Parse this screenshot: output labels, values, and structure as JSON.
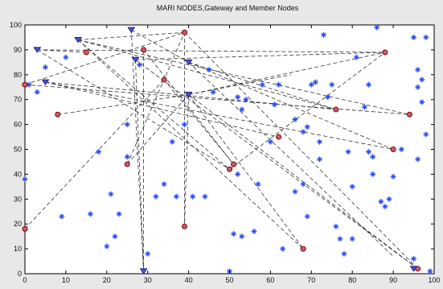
{
  "chart_data": {
    "type": "scatter",
    "title": "MARI NODES,Gateway and Member Nodes",
    "xlabel": "",
    "ylabel": "",
    "xlim": [
      0,
      100
    ],
    "ylim": [
      0,
      100
    ],
    "x_ticks": [
      0,
      10,
      20,
      30,
      40,
      50,
      60,
      70,
      80,
      90,
      100
    ],
    "y_ticks": [
      0,
      10,
      20,
      30,
      40,
      50,
      60,
      70,
      80,
      90,
      100
    ],
    "grid": false,
    "colors": {
      "member": "#2a4cf0",
      "mari": "#8b0000",
      "gateway": "#1c1c8c",
      "link": "#333333",
      "plot_bg": "#ffffff",
      "figure_bg": "#e8e8e8"
    },
    "series": [
      {
        "marker": "star",
        "points": [
          [
            0,
            38
          ],
          [
            1,
            76
          ],
          [
            3,
            73
          ],
          [
            5,
            83
          ],
          [
            9,
            23
          ],
          [
            10,
            87
          ],
          [
            16,
            24
          ],
          [
            18,
            49
          ],
          [
            20,
            11
          ],
          [
            21,
            32
          ],
          [
            22,
            15
          ],
          [
            23,
            24
          ],
          [
            25,
            47
          ],
          [
            25,
            60
          ],
          [
            28,
            84
          ],
          [
            30,
            8
          ],
          [
            32,
            31
          ],
          [
            34,
            36
          ],
          [
            36,
            53
          ],
          [
            37,
            31
          ],
          [
            39,
            60
          ],
          [
            41,
            31
          ],
          [
            44,
            31
          ],
          [
            45,
            82
          ],
          [
            46,
            73
          ],
          [
            50,
            1
          ],
          [
            51,
            16
          ],
          [
            52,
            40
          ],
          [
            52,
            71
          ],
          [
            53,
            15
          ],
          [
            53,
            66
          ],
          [
            54,
            70
          ],
          [
            56,
            17
          ],
          [
            57,
            36
          ],
          [
            58,
            76
          ],
          [
            60,
            53
          ],
          [
            61,
            68
          ],
          [
            62,
            76
          ],
          [
            63,
            10
          ],
          [
            66,
            33
          ],
          [
            66,
            62
          ],
          [
            68,
            57
          ],
          [
            68,
            36
          ],
          [
            69,
            59
          ],
          [
            69,
            23
          ],
          [
            70,
            76
          ],
          [
            71,
            77
          ],
          [
            72,
            46
          ],
          [
            72,
            53
          ],
          [
            73,
            96
          ],
          [
            74,
            71
          ],
          [
            75,
            76
          ],
          [
            76,
            19
          ],
          [
            77,
            14
          ],
          [
            78,
            8
          ],
          [
            79,
            49
          ],
          [
            80,
            35
          ],
          [
            80,
            14
          ],
          [
            81,
            87
          ],
          [
            83,
            67
          ],
          [
            84,
            76
          ],
          [
            84,
            49
          ],
          [
            85,
            47
          ],
          [
            85,
            40
          ],
          [
            86,
            99
          ],
          [
            87,
            29
          ],
          [
            88,
            27
          ],
          [
            89,
            30
          ],
          [
            90,
            39
          ],
          [
            92,
            50
          ],
          [
            95,
            6
          ],
          [
            95,
            95
          ],
          [
            96,
            46
          ],
          [
            96,
            75
          ],
          [
            96,
            82
          ],
          [
            97,
            78
          ],
          [
            97,
            69
          ],
          [
            98,
            95
          ],
          [
            98,
            56
          ],
          [
            99,
            1
          ]
        ]
      },
      {
        "marker": "circle",
        "points": [
          [
            0,
            18
          ],
          [
            0,
            76
          ],
          [
            8,
            64
          ],
          [
            15,
            89
          ],
          [
            25,
            44
          ],
          [
            29,
            90
          ],
          [
            34,
            78
          ],
          [
            39,
            19
          ],
          [
            39,
            97
          ],
          [
            50,
            42
          ],
          [
            51,
            44
          ],
          [
            62,
            55
          ],
          [
            68,
            10
          ],
          [
            76,
            66
          ],
          [
            88,
            89
          ],
          [
            90,
            50
          ],
          [
            94,
            64
          ],
          [
            96,
            2
          ]
        ]
      },
      {
        "marker": "triangle",
        "points": [
          [
            3,
            90
          ],
          [
            5,
            77
          ],
          [
            13,
            94
          ],
          [
            26,
            98
          ],
          [
            27,
            86
          ],
          [
            29,
            1
          ],
          [
            40,
            85
          ],
          [
            40,
            72
          ],
          [
            95,
            2
          ]
        ]
      }
    ],
    "links": [
      [
        [
          0,
          18
        ],
        [
          34,
          78
        ]
      ],
      [
        [
          0,
          76
        ],
        [
          39,
          97
        ]
      ],
      [
        [
          0,
          76
        ],
        [
          94,
          64
        ]
      ],
      [
        [
          3,
          90
        ],
        [
          88,
          89
        ]
      ],
      [
        [
          3,
          90
        ],
        [
          15,
          89
        ]
      ],
      [
        [
          3,
          90
        ],
        [
          50,
          42
        ]
      ],
      [
        [
          5,
          77
        ],
        [
          62,
          55
        ]
      ],
      [
        [
          5,
          77
        ],
        [
          90,
          50
        ]
      ],
      [
        [
          5,
          77
        ],
        [
          76,
          66
        ]
      ],
      [
        [
          8,
          64
        ],
        [
          40,
          72
        ]
      ],
      [
        [
          13,
          94
        ],
        [
          39,
          97
        ]
      ],
      [
        [
          13,
          94
        ],
        [
          68,
          10
        ]
      ],
      [
        [
          13,
          94
        ],
        [
          94,
          64
        ]
      ],
      [
        [
          13,
          94
        ],
        [
          76,
          66
        ]
      ],
      [
        [
          13,
          94
        ],
        [
          50,
          42
        ]
      ],
      [
        [
          25,
          44
        ],
        [
          39,
          97
        ]
      ],
      [
        [
          25,
          44
        ],
        [
          40,
          72
        ]
      ],
      [
        [
          26,
          98
        ],
        [
          29,
          1
        ]
      ],
      [
        [
          26,
          98
        ],
        [
          40,
          85
        ]
      ],
      [
        [
          27,
          86
        ],
        [
          29,
          1
        ]
      ],
      [
        [
          27,
          86
        ],
        [
          96,
          2
        ]
      ],
      [
        [
          27,
          86
        ],
        [
          88,
          89
        ]
      ],
      [
        [
          29,
          90
        ],
        [
          29,
          1
        ]
      ],
      [
        [
          29,
          90
        ],
        [
          51,
          44
        ]
      ],
      [
        [
          34,
          78
        ],
        [
          51,
          44
        ]
      ],
      [
        [
          39,
          97
        ],
        [
          39,
          19
        ]
      ],
      [
        [
          39,
          97
        ],
        [
          96,
          2
        ]
      ],
      [
        [
          40,
          85
        ],
        [
          90,
          7
        ]
      ],
      [
        [
          40,
          85
        ],
        [
          90,
          50
        ]
      ],
      [
        [
          40,
          85
        ],
        [
          76,
          66
        ]
      ],
      [
        [
          40,
          72
        ],
        [
          65,
          80
        ]
      ],
      [
        [
          40,
          72
        ],
        [
          68,
          10
        ]
      ],
      [
        [
          40,
          72
        ],
        [
          96,
          2
        ]
      ],
      [
        [
          40,
          72
        ],
        [
          39,
          19
        ]
      ],
      [
        [
          40,
          72
        ],
        [
          88,
          89
        ]
      ],
      [
        [
          50,
          42
        ],
        [
          88,
          89
        ]
      ]
    ]
  }
}
